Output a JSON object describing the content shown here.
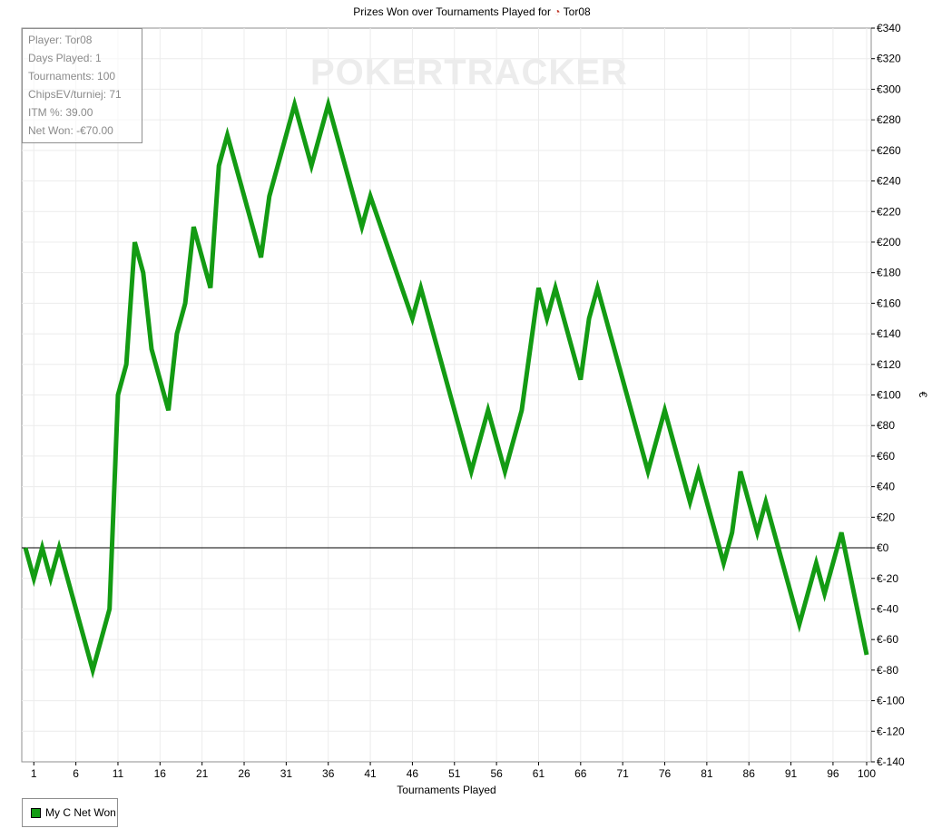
{
  "chart_data": {
    "type": "line",
    "title": "Prizes Won over Tournaments Played for",
    "title_player": "Tor08",
    "xlabel": "Tournaments Played",
    "ylabel": "€",
    "xlim": [
      0,
      100.5
    ],
    "ylim": [
      -140,
      340
    ],
    "x_ticks": [
      1,
      6,
      11,
      16,
      21,
      26,
      31,
      36,
      41,
      46,
      51,
      56,
      61,
      66,
      71,
      76,
      81,
      86,
      91,
      96,
      100
    ],
    "y_ticks": [
      340,
      320,
      300,
      280,
      260,
      240,
      220,
      200,
      180,
      160,
      140,
      120,
      100,
      80,
      60,
      40,
      20,
      0,
      -20,
      -40,
      -60,
      -80,
      -100,
      -120,
      -140
    ],
    "y_tick_labels": [
      "€340",
      "€320",
      "€300",
      "€280",
      "€260",
      "€240",
      "€220",
      "€200",
      "€180",
      "€160",
      "€140",
      "€120",
      "€100",
      "€80",
      "€60",
      "€40",
      "€20",
      "€0",
      "€-20",
      "€-40",
      "€-60",
      "€-80",
      "€-100",
      "€-120",
      "€-140"
    ],
    "grid": true,
    "legend_position": "bottom-left",
    "series": [
      {
        "name": "My C Net Won",
        "color": "#139b13",
        "x": [
          0,
          1,
          2,
          3,
          4,
          8,
          10,
          11,
          12,
          13,
          14,
          15,
          17,
          18,
          19,
          20,
          22,
          23,
          24,
          28,
          29,
          32,
          34,
          36,
          40,
          41,
          46,
          47,
          53,
          55,
          57,
          59,
          61,
          62,
          63,
          66,
          67,
          68,
          74,
          76,
          79,
          80,
          83,
          84,
          85,
          87,
          88,
          92,
          94,
          95,
          97,
          100
        ],
        "y": [
          0,
          -20,
          0,
          -20,
          0,
          -80,
          -40,
          100,
          120,
          200,
          180,
          130,
          90,
          140,
          160,
          210,
          170,
          250,
          270,
          190,
          230,
          290,
          250,
          290,
          210,
          230,
          150,
          170,
          50,
          90,
          50,
          90,
          170,
          150,
          170,
          110,
          150,
          170,
          50,
          90,
          30,
          50,
          -10,
          10,
          50,
          10,
          30,
          -50,
          -10,
          -30,
          10,
          -70
        ]
      }
    ]
  },
  "stats_box": {
    "player": "Player: Tor08",
    "days_played": "Days Played: 1",
    "tournaments": "Tournaments: 100",
    "chipsev": "ChipsEV/turniej: 71",
    "itm": "ITM %: 39.00",
    "net_won": "Net Won: -€70.00"
  },
  "watermark": "POKERTRACKER",
  "legend": {
    "label": "My C Net Won",
    "color": "#139b13"
  }
}
